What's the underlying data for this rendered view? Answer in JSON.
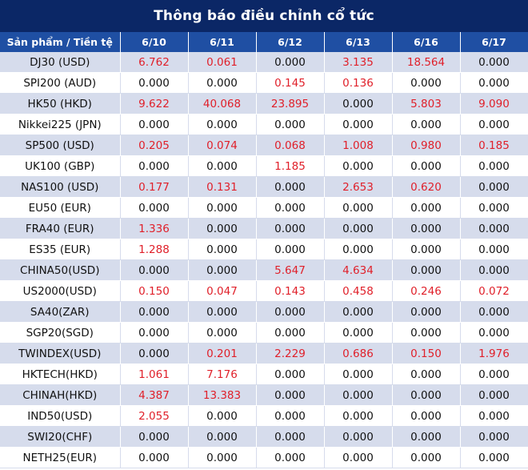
{
  "title": "Thông báo điều chỉnh cổ tức",
  "header": {
    "product_label": "Sản phẩm / Tiền tệ",
    "dates": [
      "6/10",
      "6/11",
      "6/12",
      "6/13",
      "6/16",
      "6/17"
    ]
  },
  "colors": {
    "title_bg": "#0b2766",
    "header_bg": "#1f4fa3",
    "stripe": "#d6dcec",
    "nonzero": "#e0202a"
  },
  "rows": [
    {
      "product": "DJ30 (USD)",
      "values": [
        "6.762",
        "0.061",
        "0.000",
        "3.135",
        "18.564",
        "0.000"
      ]
    },
    {
      "product": "SPI200 (AUD)",
      "values": [
        "0.000",
        "0.000",
        "0.145",
        "0.136",
        "0.000",
        "0.000"
      ]
    },
    {
      "product": "HK50 (HKD)",
      "values": [
        "9.622",
        "40.068",
        "23.895",
        "0.000",
        "5.803",
        "9.090"
      ]
    },
    {
      "product": "Nikkei225 (JPN)",
      "values": [
        "0.000",
        "0.000",
        "0.000",
        "0.000",
        "0.000",
        "0.000"
      ]
    },
    {
      "product": "SP500 (USD)",
      "values": [
        "0.205",
        "0.074",
        "0.068",
        "1.008",
        "0.980",
        "0.185"
      ]
    },
    {
      "product": "UK100 (GBP)",
      "values": [
        "0.000",
        "0.000",
        "1.185",
        "0.000",
        "0.000",
        "0.000"
      ]
    },
    {
      "product": "NAS100 (USD)",
      "values": [
        "0.177",
        "0.131",
        "0.000",
        "2.653",
        "0.620",
        "0.000"
      ]
    },
    {
      "product": "EU50 (EUR)",
      "values": [
        "0.000",
        "0.000",
        "0.000",
        "0.000",
        "0.000",
        "0.000"
      ]
    },
    {
      "product": "FRA40 (EUR)",
      "values": [
        "1.336",
        "0.000",
        "0.000",
        "0.000",
        "0.000",
        "0.000"
      ]
    },
    {
      "product": "ES35 (EUR)",
      "values": [
        "1.288",
        "0.000",
        "0.000",
        "0.000",
        "0.000",
        "0.000"
      ]
    },
    {
      "product": "CHINA50(USD)",
      "values": [
        "0.000",
        "0.000",
        "5.647",
        "4.634",
        "0.000",
        "0.000"
      ]
    },
    {
      "product": "US2000(USD)",
      "values": [
        "0.150",
        "0.047",
        "0.143",
        "0.458",
        "0.246",
        "0.072"
      ]
    },
    {
      "product": "SA40(ZAR)",
      "values": [
        "0.000",
        "0.000",
        "0.000",
        "0.000",
        "0.000",
        "0.000"
      ]
    },
    {
      "product": "SGP20(SGD)",
      "values": [
        "0.000",
        "0.000",
        "0.000",
        "0.000",
        "0.000",
        "0.000"
      ]
    },
    {
      "product": "TWINDEX(USD)",
      "values": [
        "0.000",
        "0.201",
        "2.229",
        "0.686",
        "0.150",
        "1.976"
      ]
    },
    {
      "product": "HKTECH(HKD)",
      "values": [
        "1.061",
        "7.176",
        "0.000",
        "0.000",
        "0.000",
        "0.000"
      ]
    },
    {
      "product": "CHINAH(HKD)",
      "values": [
        "4.387",
        "13.383",
        "0.000",
        "0.000",
        "0.000",
        "0.000"
      ]
    },
    {
      "product": "IND50(USD)",
      "values": [
        "2.055",
        "0.000",
        "0.000",
        "0.000",
        "0.000",
        "0.000"
      ]
    },
    {
      "product": "SWI20(CHF)",
      "values": [
        "0.000",
        "0.000",
        "0.000",
        "0.000",
        "0.000",
        "0.000"
      ]
    },
    {
      "product": "NETH25(EUR)",
      "values": [
        "0.000",
        "0.000",
        "0.000",
        "0.000",
        "0.000",
        "0.000"
      ]
    }
  ]
}
